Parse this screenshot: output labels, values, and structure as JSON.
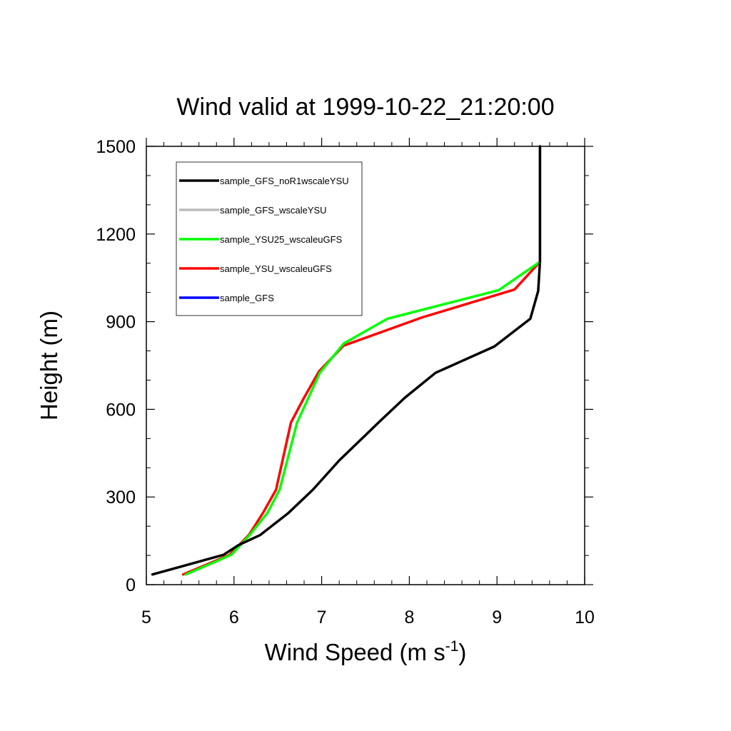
{
  "chart_data": {
    "type": "line",
    "title": "Wind valid at 1999-10-22_21:20:00",
    "xlabel": "Wind Speed (m s",
    "xlabel_sup": "-1",
    "xlabel_close": ")",
    "ylabel": "Height (m)",
    "xlim": [
      5,
      10
    ],
    "ylim": [
      0,
      1500
    ],
    "x_ticks": [
      5,
      6,
      7,
      8,
      9,
      10
    ],
    "y_ticks": [
      0,
      300,
      600,
      900,
      1200,
      1500
    ],
    "legend_position": "top-left",
    "grid": false,
    "series": [
      {
        "name": "sample_GFS_noR1wscaleYSU",
        "color": "#000000",
        "points": [
          [
            5.07,
            35
          ],
          [
            5.88,
            102
          ],
          [
            6.05,
            135
          ],
          [
            6.3,
            170
          ],
          [
            6.62,
            245
          ],
          [
            6.9,
            325
          ],
          [
            7.2,
            425
          ],
          [
            7.65,
            555
          ],
          [
            7.95,
            640
          ],
          [
            8.3,
            725
          ],
          [
            8.97,
            815
          ],
          [
            9.38,
            910
          ],
          [
            9.47,
            1005
          ],
          [
            9.49,
            1105
          ],
          [
            9.49,
            1500
          ]
        ]
      },
      {
        "name": "sample_GFS_wscaleYSU",
        "color": "#bbbbbb",
        "points": [
          [
            9.49,
            1105
          ],
          [
            9.49,
            1500
          ]
        ]
      },
      {
        "name": "sample_YSU25_wscaleuGFS",
        "color": "#00ff00",
        "points": [
          [
            5.45,
            35
          ],
          [
            5.97,
            102
          ],
          [
            6.18,
            170
          ],
          [
            6.38,
            245
          ],
          [
            6.52,
            325
          ],
          [
            6.72,
            555
          ],
          [
            6.85,
            640
          ],
          [
            6.98,
            725
          ],
          [
            7.25,
            825
          ],
          [
            7.75,
            910
          ],
          [
            9.02,
            1008
          ],
          [
            9.49,
            1105
          ]
        ]
      },
      {
        "name": "sample_YSU_wscaleuGFS",
        "color": "#ff0000",
        "points": [
          [
            5.42,
            35
          ],
          [
            5.95,
            102
          ],
          [
            6.17,
            170
          ],
          [
            6.33,
            245
          ],
          [
            6.48,
            325
          ],
          [
            6.65,
            555
          ],
          [
            6.8,
            640
          ],
          [
            6.97,
            730
          ],
          [
            7.25,
            818
          ],
          [
            8.15,
            915
          ],
          [
            9.2,
            1010
          ],
          [
            9.49,
            1105
          ]
        ]
      },
      {
        "name": "sample_GFS",
        "color": "#0000ff",
        "points": []
      }
    ]
  }
}
